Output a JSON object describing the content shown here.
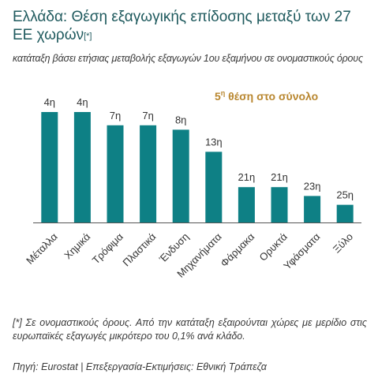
{
  "title": {
    "main": "Ελλάδα: Θέση εξαγωγικής επίδοσης μεταξύ των 27 ΕΕ χωρών",
    "marker": "[*]"
  },
  "subtitle": "κατάταξη βάσει ετήσιας μεταβολής εξαγωγών 1ου εξαμήνου σε ονομαστικούς όρους",
  "callout": {
    "rank_number": "5",
    "rank_suffix": "η",
    "rank_text": " θέση στο σύνολο"
  },
  "chart_data": {
    "type": "bar",
    "title": "Ελλάδα: Θέση εξαγωγικής επίδοσης μεταξύ των 27 ΕΕ χωρών",
    "categories": [
      "Μέταλλα",
      "Χημικά",
      "Τρόφιμα",
      "Πλαστικά",
      "Ένδυση",
      "Μηχανήματα",
      "Φάρμακα",
      "Ορυκτά",
      "Υφάσματα",
      "Ξύλο"
    ],
    "values": [
      4,
      4,
      7,
      7,
      8,
      13,
      21,
      21,
      23,
      25
    ],
    "labels": [
      "4η",
      "4η",
      "7η",
      "7η",
      "8η",
      "13η",
      "21η",
      "21η",
      "23η",
      "25η"
    ],
    "scale": "rank, bar height = 29 - rank",
    "ylim": [
      0,
      29
    ],
    "grid": false,
    "xlabel": "",
    "ylabel": "",
    "color": "#0e8085"
  },
  "footnote": "[*] Σε ονομαστικούς όρους. Από την κατάταξη εξαιρούνται χώρες με μερίδιο στις ευρωπαϊκές εξαγωγές μικρότερο του 0,1% ανά κλάδο.",
  "source": "Πηγή: Eurostat | Επεξεργασία-Εκτιμήσεις: Εθνική Τράπεζα",
  "colors": {
    "title": "#1f5a5e",
    "bar": "#0e8085",
    "callout": "#b8862e",
    "text": "#3a3a3a",
    "axis": "#555555"
  }
}
